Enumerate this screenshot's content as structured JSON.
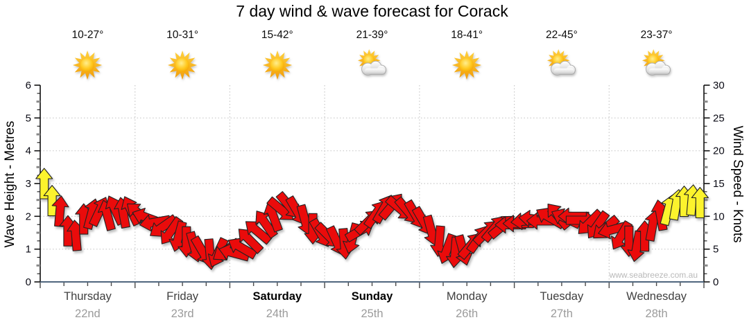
{
  "title": "7 day wind & wave forecast for Corack",
  "watermark": "www.seabreeze.com.au",
  "axes": {
    "left_label": "Wave Height - Metres",
    "right_label": "Wind Speed - Knots",
    "left_ticks": [
      "0",
      "1",
      "2",
      "3",
      "4",
      "5",
      "6"
    ],
    "right_ticks": [
      "0",
      "5",
      "10",
      "15",
      "20",
      "25",
      "30"
    ]
  },
  "colors": {
    "arrow_red": "#EA0B0B",
    "arrow_yellow": "#FCF32D",
    "arrow_outline": "#222222",
    "axis_line": "#101010",
    "baseline": "#36506B",
    "bottom_tick": "#4a4a4a",
    "grid": "#c8c8c8",
    "minor_tick_half": "#8a8a8a",
    "tick_label": "#0a0a14"
  },
  "chart_data": {
    "type": "wind-arrow-series",
    "title": "7 day wind & wave forecast for Corack",
    "ylabel_left": "Wave Height - Metres",
    "ylabel_right": "Wind Speed - Knots",
    "ylim_metres": [
      0,
      6
    ],
    "ylim_knots": [
      0,
      30
    ],
    "grid": "dotted horizontal at 1-5 m, dotted vertical at day boundaries",
    "days": [
      {
        "name": "Thursday",
        "date": "22nd",
        "temp": "10-27°",
        "icon": "sun",
        "weekend": false
      },
      {
        "name": "Friday",
        "date": "23rd",
        "temp": "10-31°",
        "icon": "sun",
        "weekend": false
      },
      {
        "name": "Saturday",
        "date": "24th",
        "temp": "15-42°",
        "icon": "sun",
        "weekend": true
      },
      {
        "name": "Sunday",
        "date": "25th",
        "temp": "21-39°",
        "icon": "sun-cloud",
        "weekend": true
      },
      {
        "name": "Monday",
        "date": "26th",
        "temp": "18-41°",
        "icon": "sun",
        "weekend": false
      },
      {
        "name": "Tuesday",
        "date": "27th",
        "temp": "22-45°",
        "icon": "sun-cloud",
        "weekend": false
      },
      {
        "name": "Wednesday",
        "date": "28th",
        "temp": "23-37°",
        "icon": "sun-cloud",
        "weekend": false
      }
    ],
    "arrows_format": [
      "day_index",
      "slot_of_12",
      "knots",
      "direction_deg_cw_from_up",
      "is_yellow"
    ],
    "arrows": [
      [
        0,
        0,
        15.0,
        0,
        1
      ],
      [
        0,
        1,
        12.4,
        0,
        1
      ],
      [
        0,
        2,
        10.8,
        5,
        0
      ],
      [
        0,
        3,
        7.8,
        0,
        0
      ],
      [
        0,
        4,
        7.1,
        355,
        0
      ],
      [
        0,
        5,
        9.6,
        0,
        0
      ],
      [
        0,
        6,
        10.4,
        15,
        0
      ],
      [
        0,
        7,
        10.8,
        25,
        0
      ],
      [
        0,
        8,
        10.2,
        345,
        0
      ],
      [
        0,
        9,
        11.0,
        335,
        0
      ],
      [
        0,
        10,
        10.6,
        350,
        0
      ],
      [
        0,
        11,
        10.9,
        335,
        0
      ],
      [
        1,
        0,
        10.4,
        310,
        0
      ],
      [
        1,
        1,
        9.8,
        290,
        0
      ],
      [
        1,
        2,
        9.1,
        260,
        0
      ],
      [
        1,
        3,
        8.4,
        235,
        0
      ],
      [
        1,
        4,
        7.7,
        215,
        0
      ],
      [
        1,
        5,
        6.9,
        195,
        0
      ],
      [
        1,
        6,
        6.1,
        180,
        0
      ],
      [
        1,
        7,
        5.3,
        165,
        0
      ],
      [
        1,
        8,
        4.7,
        150,
        0
      ],
      [
        1,
        9,
        4.2,
        175,
        0
      ],
      [
        1,
        10,
        4.4,
        205,
        0
      ],
      [
        1,
        11,
        4.8,
        235,
        0
      ],
      [
        2,
        0,
        4.4,
        285,
        0
      ],
      [
        2,
        1,
        5.2,
        300,
        0
      ],
      [
        2,
        2,
        6.4,
        315,
        0
      ],
      [
        2,
        3,
        7.7,
        310,
        0
      ],
      [
        2,
        4,
        8.9,
        325,
        0
      ],
      [
        2,
        5,
        10.0,
        340,
        0
      ],
      [
        2,
        6,
        11.0,
        130,
        0
      ],
      [
        2,
        7,
        11.6,
        140,
        0
      ],
      [
        2,
        8,
        10.8,
        150,
        0
      ],
      [
        2,
        9,
        9.4,
        165,
        0
      ],
      [
        2,
        10,
        8.1,
        180,
        0
      ],
      [
        2,
        11,
        7.4,
        150,
        0
      ],
      [
        3,
        0,
        7.0,
        135,
        0
      ],
      [
        3,
        1,
        6.2,
        155,
        0
      ],
      [
        3,
        2,
        5.8,
        175,
        0
      ],
      [
        3,
        3,
        6.6,
        195,
        0
      ],
      [
        3,
        4,
        7.8,
        60,
        0
      ],
      [
        3,
        5,
        9.2,
        45,
        0
      ],
      [
        3,
        6,
        10.4,
        35,
        0
      ],
      [
        3,
        7,
        11.2,
        30,
        0
      ],
      [
        3,
        8,
        11.6,
        40,
        0
      ],
      [
        3,
        9,
        11.2,
        130,
        0
      ],
      [
        3,
        10,
        10.8,
        140,
        0
      ],
      [
        3,
        11,
        10.2,
        150,
        0
      ],
      [
        4,
        0,
        9.2,
        150,
        0
      ],
      [
        4,
        1,
        7.8,
        165,
        0
      ],
      [
        4,
        2,
        6.2,
        185,
        0
      ],
      [
        4,
        3,
        5.0,
        200,
        0
      ],
      [
        4,
        4,
        4.5,
        185,
        0
      ],
      [
        4,
        5,
        4.8,
        165,
        0
      ],
      [
        4,
        6,
        5.6,
        40,
        0
      ],
      [
        4,
        7,
        6.6,
        35,
        0
      ],
      [
        4,
        8,
        7.6,
        45,
        0
      ],
      [
        4,
        9,
        8.2,
        40,
        0
      ],
      [
        4,
        10,
        8.5,
        50,
        0
      ],
      [
        4,
        11,
        8.7,
        270,
        0
      ],
      [
        5,
        0,
        8.9,
        270,
        0
      ],
      [
        5,
        1,
        9.3,
        265,
        0
      ],
      [
        5,
        2,
        9.6,
        275,
        0
      ],
      [
        5,
        3,
        9.3,
        270,
        0
      ],
      [
        5,
        4,
        9.8,
        300,
        0
      ],
      [
        5,
        5,
        10.1,
        320,
        0
      ],
      [
        5,
        6,
        9.7,
        295,
        0
      ],
      [
        5,
        7,
        10.0,
        270,
        0
      ],
      [
        5,
        8,
        9.4,
        90,
        0
      ],
      [
        5,
        9,
        9.0,
        225,
        0
      ],
      [
        5,
        10,
        8.6,
        215,
        0
      ],
      [
        5,
        11,
        8.2,
        230,
        0
      ],
      [
        6,
        0,
        8.0,
        255,
        0
      ],
      [
        6,
        1,
        7.0,
        210,
        0
      ],
      [
        6,
        2,
        6.2,
        180,
        0
      ],
      [
        6,
        3,
        5.4,
        190,
        0
      ],
      [
        6,
        4,
        7.0,
        0,
        0
      ],
      [
        6,
        5,
        8.6,
        10,
        0
      ],
      [
        6,
        6,
        10.2,
        350,
        0
      ],
      [
        6,
        7,
        11.0,
        15,
        1
      ],
      [
        6,
        8,
        11.8,
        10,
        1
      ],
      [
        6,
        9,
        12.3,
        0,
        1
      ],
      [
        6,
        10,
        12.5,
        5,
        1
      ],
      [
        6,
        11,
        12.1,
        0,
        1
      ]
    ]
  }
}
